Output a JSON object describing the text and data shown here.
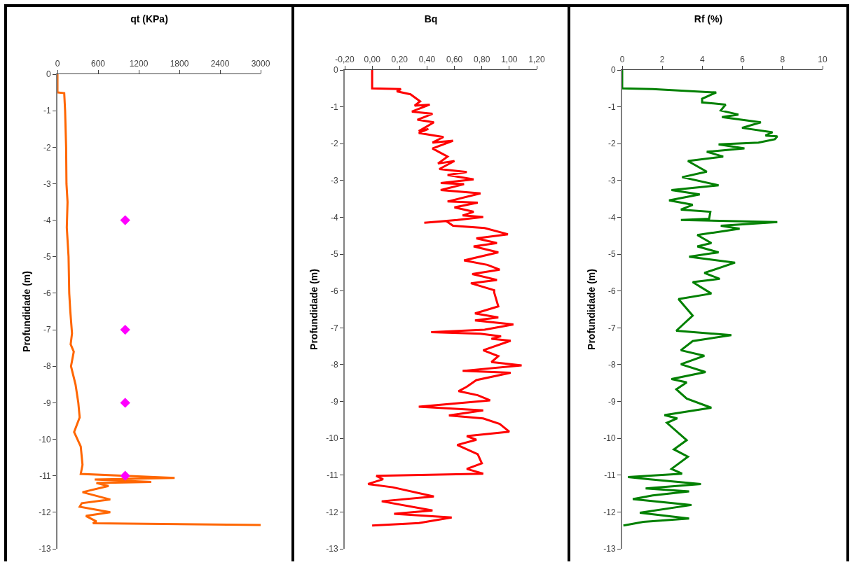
{
  "chart_data": [
    {
      "type": "line",
      "title": "qt (KPa)",
      "ylabel": "Profundidade (m)",
      "xlim": [
        0,
        3000
      ],
      "xticks": [
        0,
        600,
        1200,
        1800,
        2400,
        3000
      ],
      "ylim": [
        -13,
        0
      ],
      "yticks": [
        -13,
        -12,
        -11,
        -10,
        -9,
        -8,
        -7,
        -6,
        -5,
        -4,
        -3,
        -2,
        -1,
        0
      ],
      "series": [
        {
          "marker": "none",
          "color": "#ff6600",
          "x": [
            0,
            0,
            100,
            113,
            128,
            133,
            149,
            138,
            164,
            174,
            190,
            215,
            195,
            241,
            200,
            267,
            308,
            328,
            246,
            344,
            370,
            344,
            1730,
            550,
            1385,
            575,
            754,
            370,
            780,
            360,
            328,
            780,
            420,
            575,
            523,
            3000
          ],
          "values": [
            0,
            -0.5,
            -0.52,
            -1,
            -2,
            -3,
            -3.5,
            -4.2,
            -5,
            -6,
            -6.5,
            -7.1,
            -7.4,
            -7.6,
            -8,
            -8.5,
            -9,
            -9.4,
            -9.8,
            -10.2,
            -10.7,
            -10.95,
            -11.06,
            -11.1,
            -11.17,
            -11.2,
            -11.28,
            -11.45,
            -11.65,
            -11.75,
            -11.85,
            -12.0,
            -12.1,
            -12.25,
            -12.3,
            -12.35
          ]
        },
        {
          "type": "scatter",
          "marker": "diamond",
          "color": "#ff00ff",
          "x": [
            1000,
            1000,
            1000,
            1000
          ],
          "values": [
            -4,
            -7,
            -9,
            -11
          ]
        }
      ]
    },
    {
      "type": "line",
      "title": "Bq",
      "ylabel": "Profundidade (m)",
      "xlim": [
        -0.2,
        1.2
      ],
      "xticks": [
        {
          "value": -0.2,
          "label": "-0,20"
        },
        {
          "value": 0,
          "label": "0,00"
        },
        {
          "value": 0.2,
          "label": "0,20"
        },
        {
          "value": 0.4,
          "label": "0,40"
        },
        {
          "value": 0.6,
          "label": "0,60"
        },
        {
          "value": 0.8,
          "label": "0,80"
        },
        {
          "value": 1.0,
          "label": "1,00"
        },
        {
          "value": 1.2,
          "label": "1,20"
        }
      ],
      "ylim": [
        -13,
        0
      ],
      "yticks": [
        -13,
        -12,
        -11,
        -10,
        -9,
        -8,
        -7,
        -6,
        -5,
        -4,
        -3,
        -2,
        -1,
        0
      ],
      "series": [
        {
          "marker": "none",
          "color": "#ff0000",
          "x": [
            0,
            0,
            0.21,
            0.18,
            0.28,
            0.35,
            0.31,
            0.42,
            0.29,
            0.44,
            0.33,
            0.45,
            0.34,
            0.41,
            0.34,
            0.52,
            0.44,
            0.59,
            0.44,
            0.55,
            0.48,
            0.6,
            0.49,
            0.69,
            0.55,
            0.74,
            0.5,
            0.67,
            0.5,
            0.79,
            0.55,
            0.77,
            0.6,
            0.74,
            0.66,
            0.81,
            0.62,
            0.38,
            0.54,
            0.59,
            0.82,
            0.99,
            0.76,
            0.91,
            0.74,
            0.92,
            0.67,
            0.84,
            0.93,
            0.73,
            0.91,
            0.72,
            0.89,
            0.89,
            0.92,
            0.75,
            0.92,
            0.75,
            1.03,
            0.82,
            0.43,
            0.79,
            0.94,
            0.87,
            1.01,
            0.81,
            0.92,
            0.87,
            1.09,
            0.66,
            1.01,
            0.76,
            0.69,
            0.63,
            0.77,
            0.86,
            0.34,
            0.81,
            0.56,
            0.81,
            0.93,
            1.0,
            0.69,
            0.76,
            0.62,
            0.77,
            0.8,
            0.69,
            0.81,
            0.03,
            0.08,
            -0.03,
            0.15,
            0.45,
            0.07,
            0.44,
            0.16,
            0.58,
            0.34,
            0
          ],
          "values": [
            0,
            -0.5,
            -0.52,
            -0.58,
            -0.66,
            -0.85,
            -0.97,
            -0.94,
            -1.13,
            -1.19,
            -1.35,
            -1.42,
            -1.66,
            -1.6,
            -1.71,
            -1.82,
            -1.97,
            -1.92,
            -2.13,
            -2.35,
            -2.54,
            -2.47,
            -2.69,
            -2.77,
            -2.85,
            -2.97,
            -3.07,
            -3.1,
            -3.26,
            -3.35,
            -3.57,
            -3.6,
            -3.73,
            -3.85,
            -3.95,
            -3.99,
            -4.07,
            -4.15,
            -4.1,
            -4.23,
            -4.29,
            -4.46,
            -4.57,
            -4.7,
            -4.79,
            -4.95,
            -5.17,
            -5.29,
            -5.42,
            -5.54,
            -5.7,
            -5.79,
            -5.98,
            -6.04,
            -6.42,
            -6.61,
            -6.72,
            -6.8,
            -6.91,
            -7.05,
            -7.12,
            -7.16,
            -7.23,
            -7.3,
            -7.35,
            -7.61,
            -7.77,
            -7.93,
            -8.02,
            -8.17,
            -8.22,
            -8.42,
            -8.6,
            -8.72,
            -8.83,
            -8.97,
            -9.14,
            -9.24,
            -9.38,
            -9.46,
            -9.61,
            -9.82,
            -9.94,
            -10.04,
            -10.18,
            -10.43,
            -10.68,
            -10.83,
            -10.96,
            -11.02,
            -11.11,
            -11.24,
            -11.33,
            -11.58,
            -11.71,
            -11.96,
            -12.05,
            -12.15,
            -12.3,
            -12.37
          ]
        }
      ]
    },
    {
      "type": "line",
      "title": "Rf (%)",
      "ylabel": "Profundidade (m)",
      "xlim": [
        0,
        10
      ],
      "xticks": [
        0,
        2,
        4,
        6,
        8,
        10
      ],
      "ylim": [
        -13,
        0
      ],
      "yticks": [
        -13,
        -12,
        -11,
        -10,
        -9,
        -8,
        -7,
        -6,
        -5,
        -4,
        -3,
        -2,
        -1,
        0
      ],
      "series": [
        {
          "marker": "none",
          "color": "#008000",
          "x": [
            0,
            0,
            1.52,
            4.69,
            3.99,
            3.99,
            5.16,
            4.92,
            5.8,
            4.98,
            6.92,
            5.98,
            7.5,
            7.15,
            7.74,
            7.62,
            6.8,
            4.81,
            6.1,
            4.22,
            5.04,
            3.28,
            4.22,
            2.99,
            4.81,
            2.46,
            3.87,
            2.34,
            3.52,
            2.93,
            4.4,
            4.34,
            2.93,
            7.74,
            4.92,
            5.86,
            3.75,
            4.45,
            3.75,
            4.81,
            3.34,
            5.63,
            4.1,
            4.87,
            3.52,
            4.45,
            2.81,
            3.52,
            2.7,
            5.45,
            3.52,
            2.93,
            4.1,
            2.93,
            4.16,
            2.46,
            3.22,
            2.7,
            3.22,
            4.45,
            2.11,
            2.75,
            2.23,
            3.22,
            2.58,
            3.28,
            2.46,
            2.99,
            0.29,
            1.29,
            3.93,
            1.17,
            3.34,
            1.52,
            0.53,
            3.46,
            0.88,
            3.34,
            1.06,
            0.06
          ],
          "values": [
            0,
            -0.5,
            -0.52,
            -0.61,
            -0.78,
            -0.88,
            -0.94,
            -1.1,
            -1.21,
            -1.28,
            -1.42,
            -1.57,
            -1.69,
            -1.78,
            -1.8,
            -1.88,
            -1.97,
            -2.02,
            -2.13,
            -2.22,
            -2.35,
            -2.47,
            -2.76,
            -2.91,
            -3.13,
            -3.26,
            -3.38,
            -3.54,
            -3.66,
            -3.79,
            -3.85,
            -4.04,
            -4.07,
            -4.13,
            -4.23,
            -4.31,
            -4.48,
            -4.7,
            -4.79,
            -4.95,
            -5.07,
            -5.23,
            -5.51,
            -5.67,
            -5.76,
            -6.07,
            -6.22,
            -6.67,
            -7.08,
            -7.2,
            -7.36,
            -7.61,
            -7.76,
            -7.99,
            -8.2,
            -8.39,
            -8.48,
            -8.67,
            -8.92,
            -9.17,
            -9.37,
            -9.46,
            -9.58,
            -10.05,
            -10.3,
            -10.5,
            -10.83,
            -10.96,
            -11.05,
            -11.11,
            -11.24,
            -11.36,
            -11.44,
            -11.55,
            -11.65,
            -11.81,
            -12.02,
            -12.18,
            -12.27,
            -12.37
          ]
        }
      ]
    }
  ]
}
